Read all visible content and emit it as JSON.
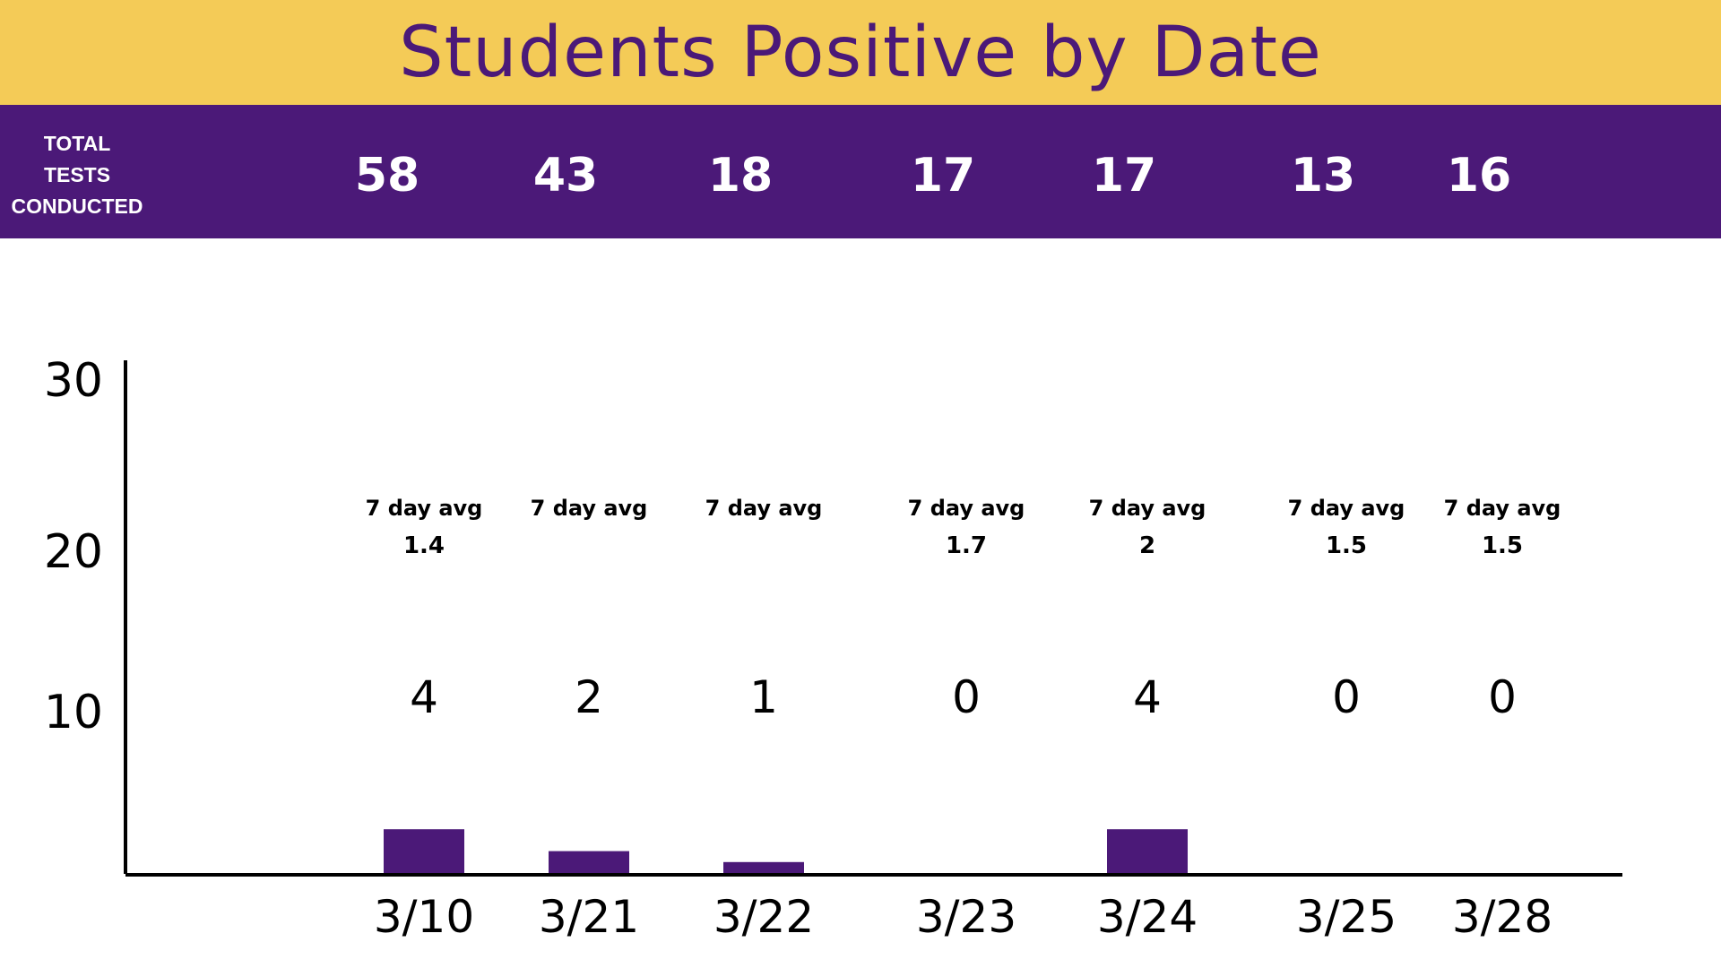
{
  "header": {
    "title": "Students Positive by Date",
    "tests_label": "TOTAL\nTESTS\nCONDUCTED"
  },
  "colors": {
    "title_band": "#f4cb57",
    "tests_band": "#4b1978",
    "bar": "#4b1978",
    "axis": "#000000"
  },
  "chart_data": {
    "type": "bar",
    "title": "Students Positive by Date",
    "xlabel": "",
    "ylabel": "",
    "categories": [
      "3/10",
      "3/21",
      "3/22",
      "3/23",
      "3/24",
      "3/25",
      "3/28"
    ],
    "values": [
      4,
      2,
      1,
      0,
      4,
      0,
      0
    ],
    "tests_conducted": [
      "58",
      "43",
      "18",
      "17",
      "17",
      "13",
      "16"
    ],
    "avg_label": "7 day avg",
    "seven_day_avg": [
      "1.4",
      "",
      "",
      "1.7",
      "2",
      "1.5",
      "1.5"
    ],
    "y_ticks": [
      10,
      20,
      30
    ],
    "ylim": [
      0,
      30
    ],
    "grid": false,
    "legend": "none"
  }
}
